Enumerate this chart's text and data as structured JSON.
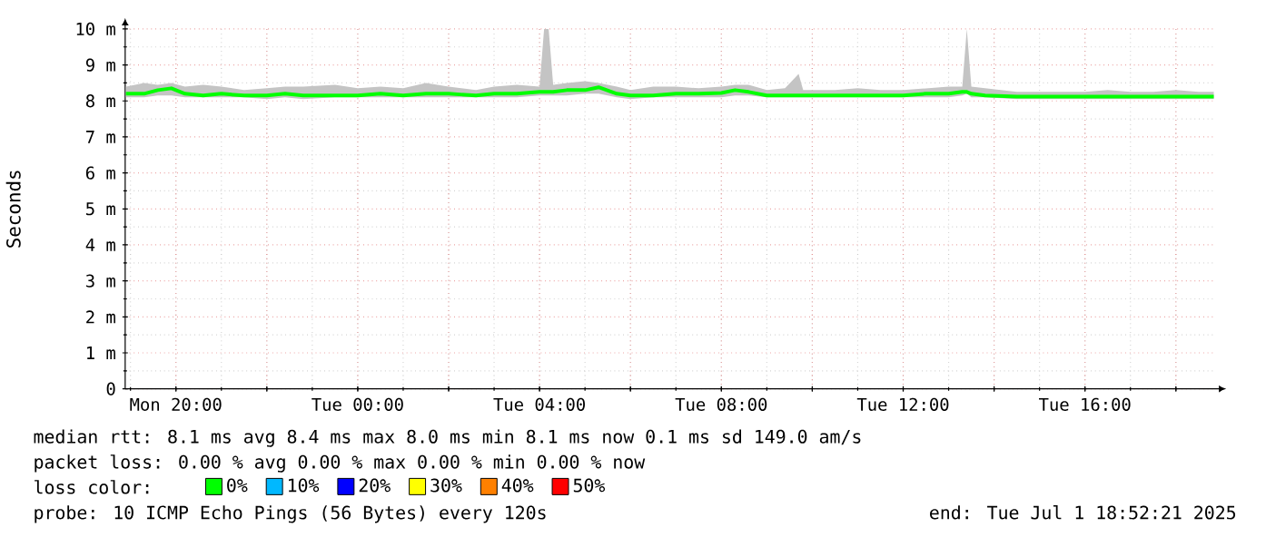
{
  "chart_data": {
    "type": "line",
    "ylabel": "Seconds",
    "legend_title": "loss color:",
    "x": [
      "2025-06-30T18:54",
      "2025-06-30T19:18",
      "2025-06-30T19:36",
      "2025-06-30T19:54",
      "2025-06-30T20:12",
      "2025-06-30T20:36",
      "2025-06-30T21:00",
      "2025-06-30T21:30",
      "2025-06-30T22:00",
      "2025-06-30T22:24",
      "2025-06-30T22:48",
      "2025-06-30T23:30",
      "2025-07-01T00:00",
      "2025-07-01T00:30",
      "2025-07-01T01:00",
      "2025-07-01T01:30",
      "2025-07-01T02:00",
      "2025-07-01T02:36",
      "2025-07-01T03:00",
      "2025-07-01T03:30",
      "2025-07-01T04:00",
      "2025-07-01T04:06",
      "2025-07-01T04:12",
      "2025-07-01T04:18",
      "2025-07-01T04:36",
      "2025-07-01T05:00",
      "2025-07-01T05:18",
      "2025-07-01T05:42",
      "2025-07-01T06:00",
      "2025-07-01T06:30",
      "2025-07-01T07:00",
      "2025-07-01T07:30",
      "2025-07-01T08:00",
      "2025-07-01T08:18",
      "2025-07-01T08:36",
      "2025-07-01T09:00",
      "2025-07-01T09:24",
      "2025-07-01T09:42",
      "2025-07-01T09:48",
      "2025-07-01T10:00",
      "2025-07-01T10:30",
      "2025-07-01T11:00",
      "2025-07-01T11:30",
      "2025-07-01T12:00",
      "2025-07-01T12:30",
      "2025-07-01T13:00",
      "2025-07-01T13:18",
      "2025-07-01T13:24",
      "2025-07-01T13:30",
      "2025-07-01T13:48",
      "2025-07-01T14:30",
      "2025-07-01T15:00",
      "2025-07-01T15:30",
      "2025-07-01T16:00",
      "2025-07-01T16:30",
      "2025-07-01T17:00",
      "2025-07-01T17:30",
      "2025-07-01T18:00",
      "2025-07-01T18:30",
      "2025-07-01T18:50"
    ],
    "series": [
      {
        "name": "0%",
        "color": "#00ff00",
        "values": [
          8.2,
          8.2,
          8.3,
          8.35,
          8.2,
          8.15,
          8.2,
          8.15,
          8.15,
          8.2,
          8.15,
          8.15,
          8.15,
          8.2,
          8.15,
          8.2,
          8.2,
          8.15,
          8.2,
          8.2,
          8.25,
          8.25,
          8.25,
          8.25,
          8.3,
          8.3,
          8.38,
          8.2,
          8.15,
          8.15,
          8.2,
          8.2,
          8.22,
          8.3,
          8.25,
          8.15,
          8.15,
          8.15,
          8.15,
          8.15,
          8.15,
          8.15,
          8.15,
          8.15,
          8.2,
          8.2,
          8.25,
          8.25,
          8.2,
          8.15,
          8.12,
          8.12,
          8.12,
          8.12,
          8.12,
          8.12,
          8.12,
          8.12,
          8.12,
          8.12
        ],
        "lower": [
          8.1,
          8.1,
          8.15,
          8.15,
          8.1,
          8.1,
          8.1,
          8.1,
          8.05,
          8.1,
          8.05,
          8.1,
          8.1,
          8.1,
          8.1,
          8.1,
          8.1,
          8.1,
          8.1,
          8.1,
          8.15,
          8.15,
          8.15,
          8.15,
          8.15,
          8.2,
          8.2,
          8.1,
          8.05,
          8.1,
          8.1,
          8.1,
          8.1,
          8.15,
          8.15,
          8.1,
          8.1,
          8.1,
          8.1,
          8.1,
          8.1,
          8.1,
          8.1,
          8.1,
          8.1,
          8.1,
          8.15,
          8.2,
          8.1,
          8.1,
          8.05,
          8.05,
          8.05,
          8.05,
          8.05,
          8.05,
          8.05,
          8.05,
          8.05,
          8.05
        ],
        "upper": [
          8.4,
          8.5,
          8.45,
          8.5,
          8.4,
          8.45,
          8.4,
          8.3,
          8.35,
          8.4,
          8.4,
          8.45,
          8.35,
          8.4,
          8.35,
          8.5,
          8.4,
          8.3,
          8.4,
          8.45,
          8.4,
          10.0,
          10.0,
          8.45,
          8.5,
          8.55,
          8.5,
          8.4,
          8.3,
          8.4,
          8.4,
          8.35,
          8.4,
          8.45,
          8.45,
          8.3,
          8.35,
          8.75,
          8.3,
          8.3,
          8.3,
          8.35,
          8.3,
          8.3,
          8.35,
          8.4,
          8.4,
          10.0,
          8.4,
          8.35,
          8.25,
          8.25,
          8.25,
          8.25,
          8.3,
          8.25,
          8.25,
          8.3,
          8.25,
          8.25
        ]
      },
      {
        "name": "10%",
        "color": "#00b8ff",
        "values": [
          null,
          null,
          null,
          null,
          null,
          null,
          null,
          null,
          null,
          null,
          null,
          null,
          null,
          null,
          null,
          null,
          null,
          null,
          null,
          null,
          null,
          null,
          null,
          null,
          null,
          null,
          null,
          null,
          null,
          null,
          null,
          null,
          null,
          null,
          null,
          null,
          null,
          null,
          null,
          null,
          null,
          null,
          null,
          null,
          null,
          null,
          null,
          null,
          null,
          null,
          null,
          null,
          null,
          null,
          null,
          null,
          null,
          null,
          null,
          null
        ]
      },
      {
        "name": "20%",
        "color": "#0000ff",
        "values": [
          null,
          null,
          null,
          null,
          null,
          null,
          null,
          null,
          null,
          null,
          null,
          null,
          null,
          null,
          null,
          null,
          null,
          null,
          null,
          null,
          null,
          null,
          null,
          null,
          null,
          null,
          null,
          null,
          null,
          null,
          null,
          null,
          null,
          null,
          null,
          null,
          null,
          null,
          null,
          null,
          null,
          null,
          null,
          null,
          null,
          null,
          null,
          null,
          null,
          null,
          null,
          null,
          null,
          null,
          null,
          null,
          null,
          null,
          null,
          null
        ]
      },
      {
        "name": "30%",
        "color": "#ffff00",
        "values": [
          null,
          null,
          null,
          null,
          null,
          null,
          null,
          null,
          null,
          null,
          null,
          null,
          null,
          null,
          null,
          null,
          null,
          null,
          null,
          null,
          null,
          null,
          null,
          null,
          null,
          null,
          null,
          null,
          null,
          null,
          null,
          null,
          null,
          null,
          null,
          null,
          null,
          null,
          null,
          null,
          null,
          null,
          null,
          null,
          null,
          null,
          null,
          null,
          null,
          null,
          null,
          null,
          null,
          null,
          null,
          null,
          null,
          null,
          null,
          null
        ]
      },
      {
        "name": "40%",
        "color": "#ff8000",
        "values": [
          null,
          null,
          null,
          null,
          null,
          null,
          null,
          null,
          null,
          null,
          null,
          null,
          null,
          null,
          null,
          null,
          null,
          null,
          null,
          null,
          null,
          null,
          null,
          null,
          null,
          null,
          null,
          null,
          null,
          null,
          null,
          null,
          null,
          null,
          null,
          null,
          null,
          null,
          null,
          null,
          null,
          null,
          null,
          null,
          null,
          null,
          null,
          null,
          null,
          null,
          null,
          null,
          null,
          null,
          null,
          null,
          null,
          null,
          null,
          null
        ]
      },
      {
        "name": "50%",
        "color": "#ff0000",
        "values": [
          null,
          null,
          null,
          null,
          null,
          null,
          null,
          null,
          null,
          null,
          null,
          null,
          null,
          null,
          null,
          null,
          null,
          null,
          null,
          null,
          null,
          null,
          null,
          null,
          null,
          null,
          null,
          null,
          null,
          null,
          null,
          null,
          null,
          null,
          null,
          null,
          null,
          null,
          null,
          null,
          null,
          null,
          null,
          null,
          null,
          null,
          null,
          null,
          null,
          null,
          null,
          null,
          null,
          null,
          null,
          null,
          null,
          null,
          null,
          null
        ]
      }
    ],
    "xlim": [
      "2025-06-30T18:53",
      "2025-07-01T18:52"
    ],
    "xticks": [
      {
        "value": "2025-06-30T20:00",
        "label": "Mon 20:00"
      },
      {
        "value": "2025-06-30T22:00",
        "label": null
      },
      {
        "value": "2025-07-01T00:00",
        "label": "Tue 00:00"
      },
      {
        "value": "2025-07-01T02:00",
        "label": null
      },
      {
        "value": "2025-07-01T04:00",
        "label": "Tue 04:00"
      },
      {
        "value": "2025-07-01T06:00",
        "label": null
      },
      {
        "value": "2025-07-01T08:00",
        "label": "Tue 08:00"
      },
      {
        "value": "2025-07-01T10:00",
        "label": null
      },
      {
        "value": "2025-07-01T12:00",
        "label": "Tue 12:00"
      },
      {
        "value": "2025-07-01T14:00",
        "label": null
      },
      {
        "value": "2025-07-01T16:00",
        "label": "Tue 16:00"
      },
      {
        "value": "2025-07-01T18:00",
        "label": null
      }
    ],
    "ylim": [
      0,
      10
    ],
    "yticks": [
      0,
      {
        "value": 1,
        "label": "1 m"
      },
      {
        "value": 2,
        "label": "2 m"
      },
      {
        "value": 3,
        "label": "3 m"
      },
      {
        "value": 4,
        "label": "4 m"
      },
      {
        "value": 5,
        "label": "5 m"
      },
      {
        "value": 6,
        "label": "6 m"
      },
      {
        "value": 7,
        "label": "7 m"
      },
      {
        "value": 8,
        "label": "8 m"
      },
      {
        "value": 9,
        "label": "9 m"
      },
      {
        "value": 10,
        "label": "10 m"
      }
    ],
    "grid": true,
    "legend": "bottom left",
    "marker": "none",
    "line_style": "solid",
    "annotations": [
      "median rtt:  8.1 ms avg  8.4 ms max  8.0 ms min  8.1 ms now  0.1 ms sd  149.0   am/s",
      "packet loss: 0.00 % avg  0.00 % max  0.00 % min  0.00 % now",
      "probe:       10 ICMP Echo Pings (56 Bytes) every 120s",
      "end: Tue Jul  1 18:52:21 2025"
    ]
  }
}
